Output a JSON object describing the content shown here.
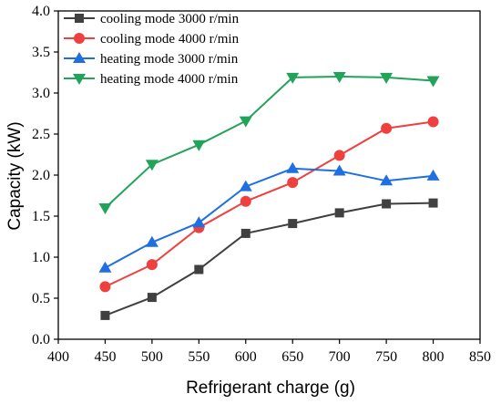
{
  "chart_data": {
    "type": "line",
    "xlabel": "Refrigerant charge (g)",
    "ylabel": "Capacity (kW)",
    "xlim": [
      400,
      850
    ],
    "ylim": [
      0.0,
      4.0
    ],
    "xticks": [
      400,
      450,
      500,
      550,
      600,
      650,
      700,
      750,
      800,
      850
    ],
    "yticks": [
      "0.0",
      "0.5",
      "1.0",
      "1.5",
      "2.0",
      "2.5",
      "3.0",
      "3.5",
      "4.0"
    ],
    "grid": false,
    "legend_position": "top-left",
    "x": [
      450,
      500,
      550,
      600,
      650,
      700,
      750,
      800
    ],
    "series": [
      {
        "name": "cooling mode 3000 r/min",
        "color": "#404040",
        "marker": "square",
        "values": [
          0.29,
          0.51,
          0.85,
          1.29,
          1.41,
          1.54,
          1.65,
          1.66
        ]
      },
      {
        "name": "cooling mode 4000 r/min",
        "color": "#ef4040",
        "marker": "circle",
        "values": [
          0.64,
          0.91,
          1.36,
          1.68,
          1.91,
          2.24,
          2.57,
          2.65
        ]
      },
      {
        "name": "heating mode 3000 r/min",
        "color": "#1f6fe0",
        "marker": "triangle-up",
        "values": [
          0.87,
          1.18,
          1.42,
          1.86,
          2.08,
          2.05,
          1.93,
          1.99
        ]
      },
      {
        "name": "heating mode 4000 r/min",
        "color": "#22a35a",
        "marker": "triangle-down",
        "values": [
          1.6,
          2.13,
          2.37,
          2.66,
          3.19,
          3.2,
          3.19,
          3.15
        ]
      }
    ]
  }
}
